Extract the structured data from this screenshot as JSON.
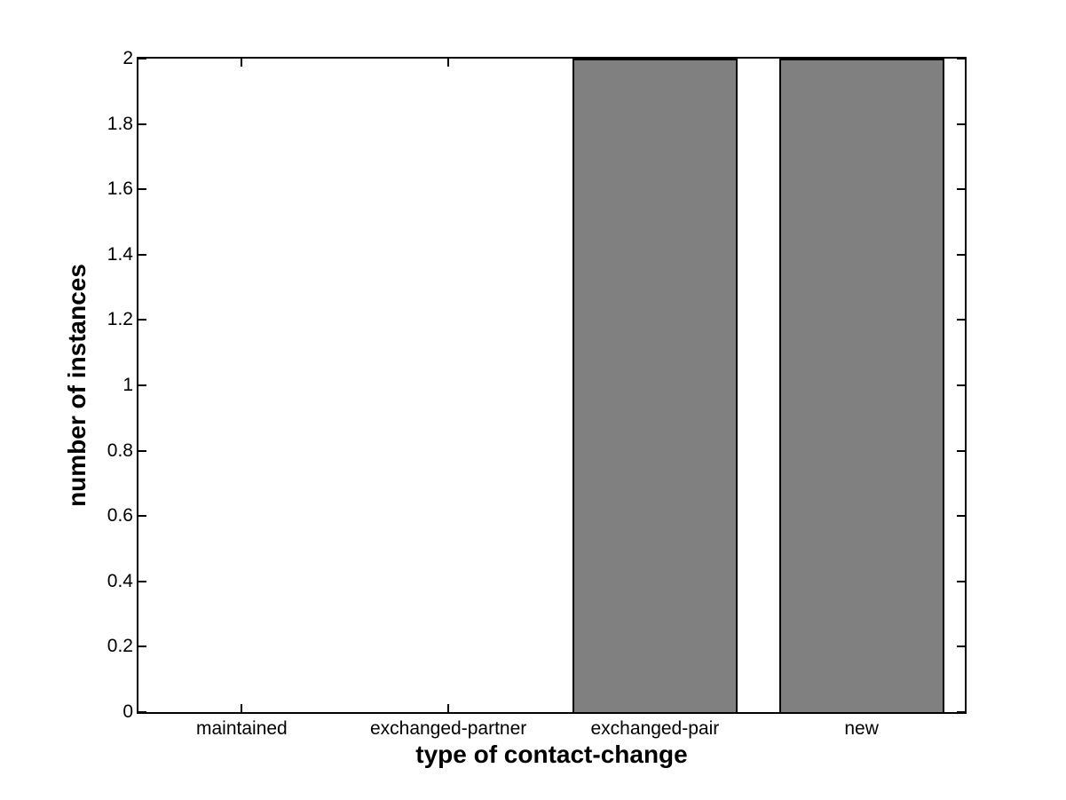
{
  "chart_data": {
    "type": "bar",
    "title": "",
    "xlabel": "type of contact-change",
    "ylabel": "number of instances",
    "categories": [
      "maintained",
      "exchanged-partner",
      "exchanged-pair",
      "new"
    ],
    "values": [
      0,
      0,
      2,
      2
    ],
    "ylim": [
      0,
      2
    ],
    "yticks": [
      0,
      0.2,
      0.4,
      0.6,
      0.8,
      1,
      1.2,
      1.4,
      1.6,
      1.8,
      2
    ],
    "ytick_labels": [
      "0",
      "0.2",
      "0.4",
      "0.6",
      "0.8",
      "1",
      "1.2",
      "1.4",
      "1.6",
      "1.8",
      "2"
    ],
    "bar_width_fraction": 0.8,
    "bar_color": "#808080",
    "bar_edge_color": "#000000",
    "axis_color": "#000000",
    "background_color": "#ffffff",
    "grid": false,
    "legend": null
  }
}
